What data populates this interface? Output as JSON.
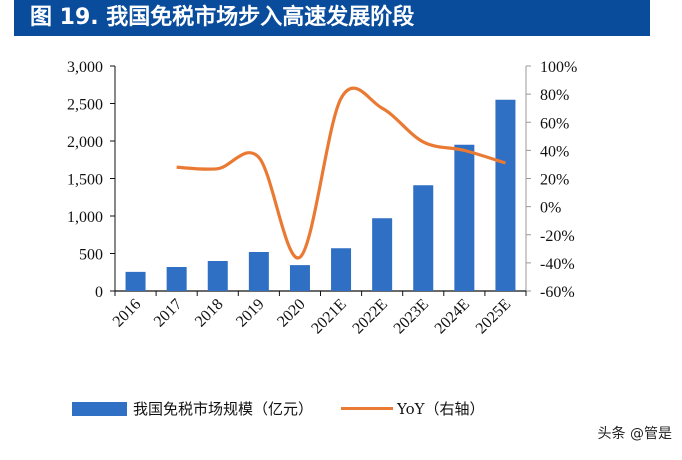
{
  "title": "图 19. 我国免税市场步入高速发展阶段",
  "watermark": "头条 @管是",
  "chart_data": {
    "type": "bar+line",
    "categories": [
      "2016",
      "2017",
      "2018",
      "2019",
      "2020",
      "2021E",
      "2022E",
      "2023E",
      "2024E",
      "2025E"
    ],
    "series": [
      {
        "name": "我国免税市场规模（亿元）",
        "type": "bar",
        "axis": "left",
        "color": "#2f6fc4",
        "values": [
          255,
          320,
          400,
          520,
          345,
          570,
          970,
          1410,
          1950,
          2550
        ]
      },
      {
        "name": "YoY（右轴）",
        "type": "line",
        "axis": "right",
        "color": "#ea7a33",
        "values": [
          null,
          28,
          27,
          35,
          -36,
          77,
          70,
          46,
          40,
          31
        ]
      }
    ],
    "y_left": {
      "range": [
        0,
        3000
      ],
      "ticks": [
        "0",
        "500",
        "1,000",
        "1,500",
        "2,000",
        "2,500",
        "3,000"
      ]
    },
    "y_right": {
      "range": [
        -60,
        100
      ],
      "ticks": [
        "-60%",
        "-40%",
        "-20%",
        "0%",
        "20%",
        "40%",
        "60%",
        "80%",
        "100%"
      ]
    },
    "grid": false,
    "legend": "bottom"
  }
}
